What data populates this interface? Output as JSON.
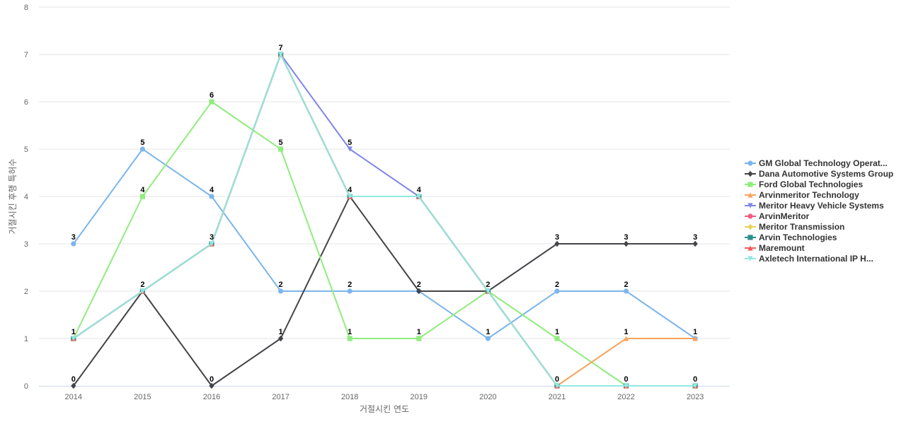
{
  "chart_data": {
    "type": "line",
    "title": "",
    "xlabel": "거절시킨 연도",
    "ylabel": "거절시킨 후행 특허수",
    "ylim": [
      0,
      8
    ],
    "yticks": [
      0,
      1,
      2,
      3,
      4,
      5,
      6,
      7,
      8
    ],
    "grid": true,
    "legend_position": "right",
    "categories": [
      "2014",
      "2015",
      "2016",
      "2017",
      "2018",
      "2019",
      "2020",
      "2021",
      "2022",
      "2023"
    ],
    "series": [
      {
        "name": "GM Global Technology Operat...",
        "color": "#7cb5ec",
        "marker": "circle",
        "values": [
          3,
          5,
          4,
          2,
          2,
          2,
          1,
          2,
          2,
          1
        ]
      },
      {
        "name": "Dana Automotive Systems Group",
        "color": "#434348",
        "marker": "diamond",
        "values": [
          0,
          2,
          0,
          1,
          4,
          2,
          2,
          3,
          3,
          3
        ]
      },
      {
        "name": "Ford Global Technologies",
        "color": "#90ed7d",
        "marker": "square",
        "values": [
          1,
          4,
          6,
          5,
          1,
          1,
          2,
          1,
          0,
          0
        ]
      },
      {
        "name": "Arvinmeritor Technology",
        "color": "#f7a35c",
        "marker": "triangle",
        "values": [
          1,
          2,
          3,
          7,
          4,
          4,
          2,
          0,
          1,
          1
        ]
      },
      {
        "name": "Meritor Heavy Vehicle Systems",
        "color": "#8085e9",
        "marker": "triangle-down",
        "values": [
          1,
          2,
          3,
          7,
          5,
          4,
          2,
          0,
          0,
          0
        ]
      },
      {
        "name": "ArvinMeritor",
        "color": "#f15c80",
        "marker": "circle",
        "values": [
          1,
          2,
          3,
          7,
          4,
          4,
          2,
          0,
          0,
          0
        ]
      },
      {
        "name": "Meritor Transmission",
        "color": "#e4d354",
        "marker": "diamond",
        "values": [
          1,
          2,
          3,
          7,
          4,
          4,
          2,
          0,
          0,
          0
        ]
      },
      {
        "name": "Arvin Technologies",
        "color": "#2b908f",
        "marker": "square",
        "values": [
          1,
          2,
          3,
          7,
          4,
          4,
          2,
          0,
          0,
          0
        ]
      },
      {
        "name": "Maremount",
        "color": "#f45b5b",
        "marker": "triangle",
        "values": [
          1,
          2,
          3,
          7,
          4,
          4,
          2,
          0,
          0,
          0
        ]
      },
      {
        "name": "Axletech International IP H...",
        "color": "#91e8e1",
        "marker": "triangle-down",
        "values": [
          1,
          2,
          3,
          7,
          4,
          4,
          2,
          0,
          0,
          0
        ]
      }
    ],
    "data_labels": [
      {
        "x": "2014",
        "y": 3,
        "text": "3"
      },
      {
        "x": "2014",
        "y": 1,
        "text": "1"
      },
      {
        "x": "2014",
        "y": 0,
        "text": "0"
      },
      {
        "x": "2015",
        "y": 5,
        "text": "5"
      },
      {
        "x": "2015",
        "y": 4,
        "text": "4"
      },
      {
        "x": "2015",
        "y": 2,
        "text": "2"
      },
      {
        "x": "2016",
        "y": 6,
        "text": "6"
      },
      {
        "x": "2016",
        "y": 4,
        "text": "4"
      },
      {
        "x": "2016",
        "y": 3,
        "text": "3"
      },
      {
        "x": "2016",
        "y": 0,
        "text": "0"
      },
      {
        "x": "2017",
        "y": 7,
        "text": "7"
      },
      {
        "x": "2017",
        "y": 5,
        "text": "5"
      },
      {
        "x": "2017",
        "y": 2,
        "text": "2"
      },
      {
        "x": "2017",
        "y": 1,
        "text": "1"
      },
      {
        "x": "2018",
        "y": 5,
        "text": "5"
      },
      {
        "x": "2018",
        "y": 4,
        "text": "4"
      },
      {
        "x": "2018",
        "y": 2,
        "text": "2"
      },
      {
        "x": "2018",
        "y": 1,
        "text": "1"
      },
      {
        "x": "2019",
        "y": 4,
        "text": "4"
      },
      {
        "x": "2019",
        "y": 2,
        "text": "2"
      },
      {
        "x": "2019",
        "y": 1,
        "text": "1"
      },
      {
        "x": "2020",
        "y": 2,
        "text": "2"
      },
      {
        "x": "2020",
        "y": 1,
        "text": "1"
      },
      {
        "x": "2021",
        "y": 3,
        "text": "3"
      },
      {
        "x": "2021",
        "y": 2,
        "text": "2"
      },
      {
        "x": "2021",
        "y": 1,
        "text": "1"
      },
      {
        "x": "2021",
        "y": 0,
        "text": "0"
      },
      {
        "x": "2022",
        "y": 3,
        "text": "3"
      },
      {
        "x": "2022",
        "y": 2,
        "text": "2"
      },
      {
        "x": "2022",
        "y": 1,
        "text": "1"
      },
      {
        "x": "2022",
        "y": 0,
        "text": "0"
      },
      {
        "x": "2023",
        "y": 3,
        "text": "3"
      },
      {
        "x": "2023",
        "y": 1,
        "text": "1"
      },
      {
        "x": "2023",
        "y": 0,
        "text": "0"
      }
    ]
  }
}
